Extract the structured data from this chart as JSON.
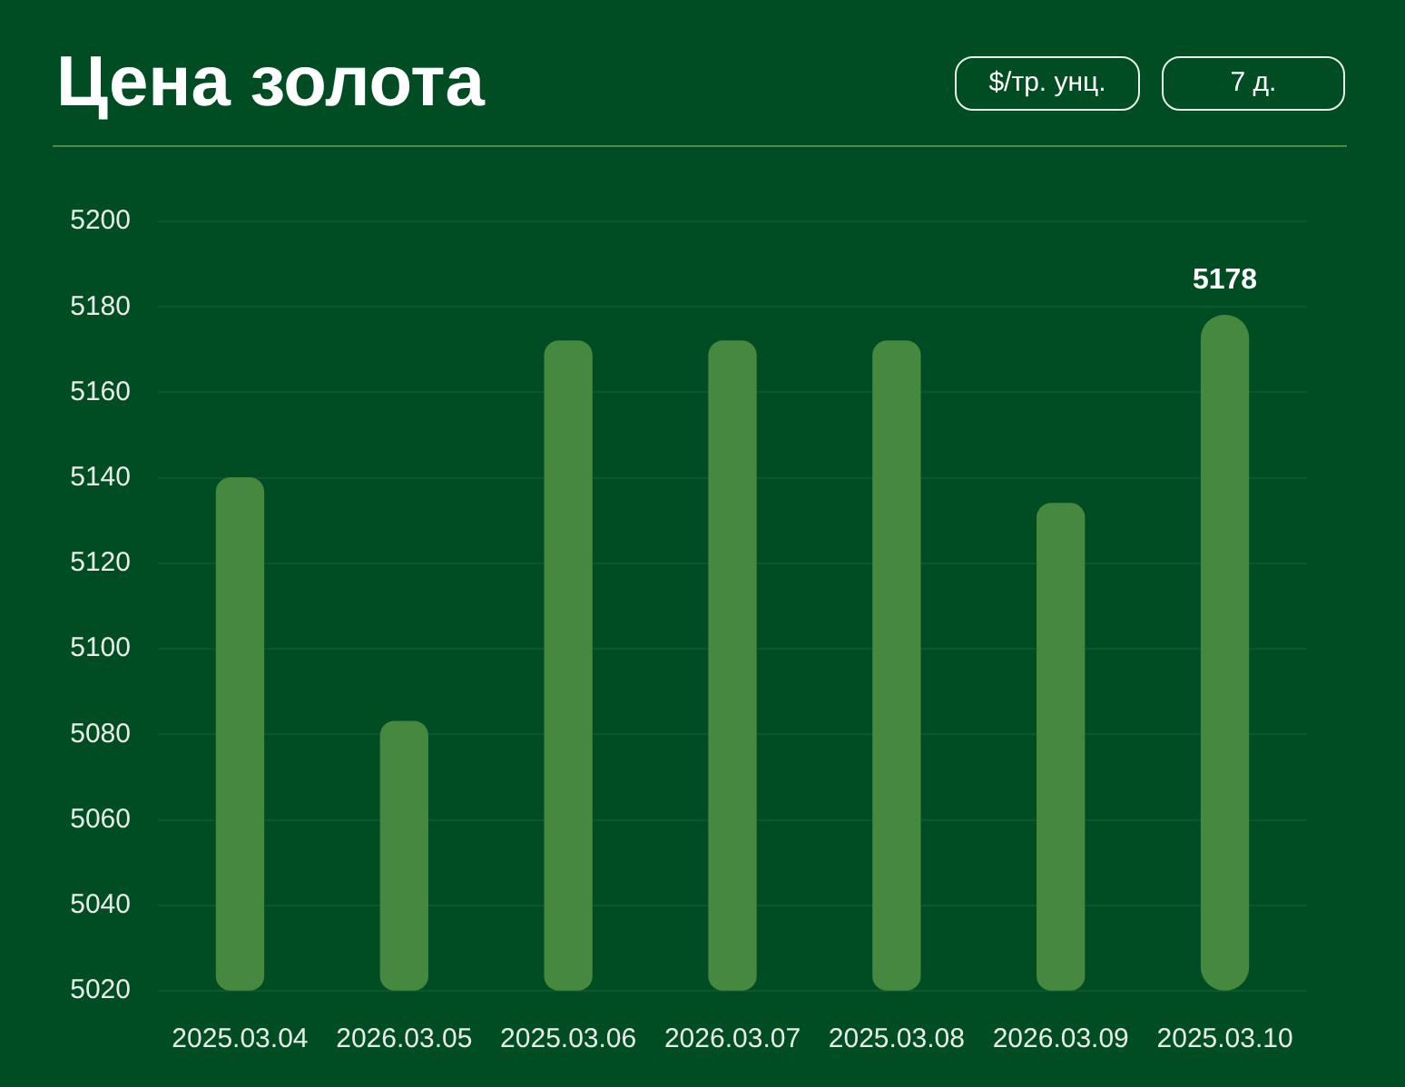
{
  "chart_data": {
    "type": "bar",
    "title": "Цена золота",
    "categories": [
      "2025.03.04",
      "2026.03.05",
      "2025.03.06",
      "2026.03.07",
      "2025.03.08",
      "2026.03.09",
      "2025.03.10"
    ],
    "values": [
      5140,
      5083,
      5172,
      5172,
      5172,
      5134,
      5178
    ],
    "color": "#46883f",
    "value_labels": [
      null,
      null,
      null,
      null,
      null,
      null,
      "5178"
    ],
    "ylim": [
      5020,
      5200
    ],
    "yticks": [
      5020,
      5040,
      5060,
      5080,
      5100,
      5120,
      5140,
      5160,
      5180,
      5200
    ],
    "grid": "y",
    "annotations": [
      "$/тр. унц.",
      "7 д."
    ]
  }
}
